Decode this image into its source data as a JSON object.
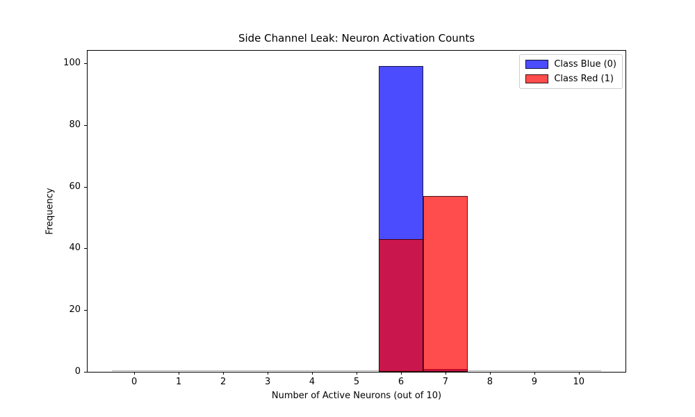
{
  "figure": {
    "background": "#ffffff"
  },
  "chart_data": {
    "type": "bar",
    "subtype": "histogram",
    "title": "Side Channel Leak: Neuron Activation Counts",
    "xlabel": "Number of Active Neurons (out of 10)",
    "ylabel": "Frequency",
    "categories": [
      0,
      1,
      2,
      3,
      4,
      5,
      6,
      7,
      8,
      9,
      10
    ],
    "bins": {
      "start": -0.5,
      "width": 1,
      "count": 11
    },
    "series": [
      {
        "id": "blue",
        "name": "Class Blue (0)",
        "color": "#0000ff",
        "fill_alpha": 0.7,
        "values": [
          0,
          0,
          0,
          0,
          0,
          0,
          99,
          1,
          0,
          0,
          0
        ]
      },
      {
        "id": "red",
        "name": "Class Red (1)",
        "color": "#ff0000",
        "fill_alpha": 0.7,
        "values": [
          0,
          0,
          0,
          0,
          0,
          0,
          43,
          57,
          0,
          0,
          0
        ]
      }
    ],
    "xlim": [
      -1.05,
      11.05
    ],
    "ylim": [
      0,
      104
    ],
    "xticks": [
      0,
      1,
      2,
      3,
      4,
      5,
      6,
      7,
      8,
      9,
      10
    ],
    "yticks": [
      0,
      20,
      40,
      60,
      80,
      100
    ],
    "grid": false,
    "legend_position": "upper right"
  },
  "colors": {
    "bar_edge": "rgba(0,0,0,0.7)",
    "spine": "#000000",
    "tick": "#000000",
    "zero_count_edge": "#aaaaaa",
    "legend_border": "#cccccc",
    "text": "#000000"
  }
}
